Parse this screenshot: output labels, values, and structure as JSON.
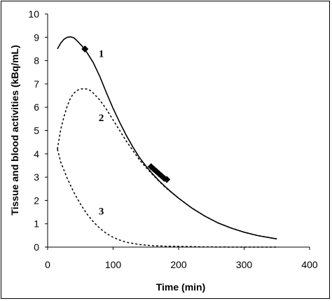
{
  "chart_data": {
    "type": "line",
    "title": "",
    "xlabel": "Time (min)",
    "ylabel": "Tissue and blood activities (kBq/mL)",
    "xlim": [
      0,
      400
    ],
    "ylim": [
      0,
      10
    ],
    "xticks": [
      0,
      100,
      200,
      300,
      400
    ],
    "yticks": [
      0,
      1,
      2,
      3,
      4,
      5,
      6,
      7,
      8,
      9,
      10
    ],
    "grid": false,
    "series": [
      {
        "name": "1",
        "style": "solid",
        "x": [
          15,
          20,
          25,
          30,
          35,
          40,
          45,
          50,
          55,
          60,
          70,
          80,
          90,
          100,
          110,
          120,
          130,
          140,
          150,
          160,
          170,
          180,
          190,
          200,
          220,
          240,
          260,
          280,
          300,
          320,
          340,
          350
        ],
        "y": [
          8.5,
          8.75,
          8.92,
          9.0,
          9.02,
          8.98,
          8.85,
          8.7,
          8.55,
          8.35,
          7.9,
          7.3,
          6.6,
          5.95,
          5.35,
          4.8,
          4.3,
          3.85,
          3.48,
          3.15,
          2.85,
          2.58,
          2.33,
          2.1,
          1.68,
          1.33,
          1.04,
          0.82,
          0.64,
          0.5,
          0.4,
          0.35
        ]
      },
      {
        "name": "2",
        "style": "dashed",
        "x": [
          15,
          20,
          25,
          30,
          35,
          40,
          45,
          50,
          55,
          60,
          65,
          70,
          80,
          90,
          100,
          110,
          120,
          130,
          140,
          150,
          160,
          170,
          180,
          190,
          200,
          220,
          240,
          260,
          280,
          300,
          320,
          340,
          350
        ],
        "y": [
          4.2,
          5.05,
          5.6,
          6.05,
          6.4,
          6.6,
          6.72,
          6.78,
          6.8,
          6.78,
          6.72,
          6.6,
          6.3,
          5.9,
          5.45,
          5.0,
          4.55,
          4.15,
          3.75,
          3.42,
          3.12,
          2.83,
          2.56,
          2.32,
          2.1,
          1.68,
          1.33,
          1.04,
          0.82,
          0.64,
          0.5,
          0.4,
          0.35
        ]
      },
      {
        "name": "3",
        "style": "dashed",
        "x": [
          15,
          20,
          30,
          40,
          50,
          60,
          70,
          80,
          90,
          100,
          110,
          120,
          140,
          160,
          180,
          200,
          240,
          280,
          320,
          350
        ],
        "y": [
          4.2,
          3.65,
          2.95,
          2.35,
          1.85,
          1.42,
          1.08,
          0.8,
          0.58,
          0.42,
          0.3,
          0.21,
          0.11,
          0.06,
          0.04,
          0.03,
          0.01,
          0.0,
          0.0,
          0.0
        ]
      }
    ],
    "markers": {
      "series": "1",
      "shape": "diamond",
      "x": [
        57,
        158,
        162,
        166,
        170,
        174,
        178,
        182
      ],
      "y": [
        8.5,
        3.45,
        3.35,
        3.25,
        3.15,
        3.05,
        2.95,
        2.9
      ]
    },
    "curve_labels": [
      {
        "text": "1",
        "x": 82,
        "y": 8.3
      },
      {
        "text": "2",
        "x": 82,
        "y": 5.55
      },
      {
        "text": "3",
        "x": 82,
        "y": 1.55
      }
    ]
  }
}
